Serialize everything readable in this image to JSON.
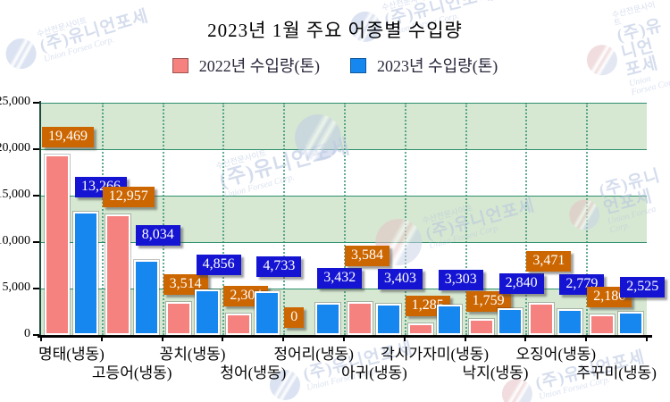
{
  "watermark": {
    "site_tagline": "수산전문사이트",
    "company": "(주)유니언포세",
    "company_en": "Union Forsea Corp.",
    "color": "#b4c2e0"
  },
  "chart_data": {
    "type": "bar",
    "title": "2023년 1월 주요 어종별 수입량",
    "categories": [
      "명태(냉동)",
      "고등어(냉동)",
      "꽁치(냉동)",
      "청어(냉동)",
      "정어리(냉동)",
      "아귀(냉동)",
      "각시가자미(냉동)",
      "낙지(냉동)",
      "오징어(냉동)",
      "주꾸미(냉동)"
    ],
    "series": [
      {
        "name": "2022년 수입량(톤)",
        "color": "#f5827f",
        "label_bg": "#cc6600",
        "values": [
          19469,
          12957,
          3514,
          2304,
          0,
          3584,
          1285,
          1759,
          3471,
          2186
        ],
        "labels": [
          "19,469",
          "12,957",
          "3,514",
          "2,304",
          "0",
          "3,584",
          "1,285",
          "1,759",
          "3,471",
          "2,186"
        ]
      },
      {
        "name": "2023년 수입량(톤)",
        "color": "#1787f0",
        "label_bg": "#1414d2",
        "values": [
          13266,
          8034,
          4856,
          4733,
          3432,
          3403,
          3303,
          2840,
          2779,
          2525
        ],
        "labels": [
          "13,266",
          "8,034",
          "4,856",
          "4,733",
          "3,432",
          "3,403",
          "3,303",
          "2,840",
          "2,779",
          "2,525"
        ]
      }
    ],
    "xlabel": "",
    "ylabel": "",
    "ylim": [
      0,
      25000
    ],
    "ytick_interval": 5000,
    "yticks": [
      "25,000",
      "20,000",
      "15,000",
      "10,000",
      "5,000",
      "0"
    ],
    "legend_position": "top",
    "grid": {
      "horizontal": "solid",
      "vertical": "dotted"
    },
    "gridline_color": "#2e8f70",
    "band_colors": [
      "#d6e8d1",
      "#ffffff"
    ],
    "axis_color": "#000000"
  }
}
